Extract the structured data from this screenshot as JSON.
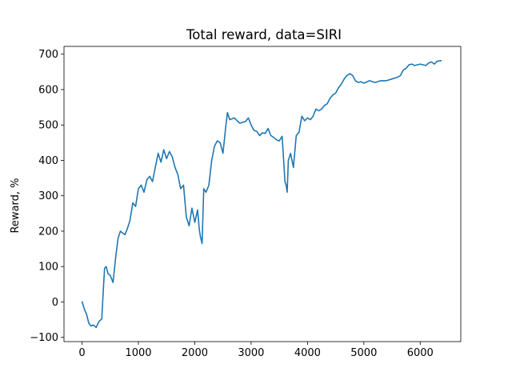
{
  "chart_data": {
    "type": "line",
    "title": "Total reward, data=SIRI",
    "xlabel": "",
    "ylabel": "Reward, %",
    "xlim": [
      -320,
      6720
    ],
    "ylim": [
      -112,
      722
    ],
    "xticks": [
      0,
      1000,
      2000,
      3000,
      4000,
      5000,
      6000
    ],
    "yticks": [
      -100,
      0,
      100,
      200,
      300,
      400,
      500,
      600,
      700
    ],
    "grid": false,
    "legend": "none",
    "series": [
      {
        "color": "#1f77b4",
        "points": [
          [
            0,
            2
          ],
          [
            40,
            -20
          ],
          [
            80,
            -35
          ],
          [
            120,
            -60
          ],
          [
            160,
            -68
          ],
          [
            200,
            -65
          ],
          [
            250,
            -72
          ],
          [
            300,
            -55
          ],
          [
            350,
            -48
          ],
          [
            380,
            40
          ],
          [
            400,
            95
          ],
          [
            430,
            100
          ],
          [
            460,
            80
          ],
          [
            500,
            75
          ],
          [
            550,
            55
          ],
          [
            600,
            130
          ],
          [
            640,
            180
          ],
          [
            680,
            200
          ],
          [
            720,
            195
          ],
          [
            760,
            190
          ],
          [
            800,
            205
          ],
          [
            850,
            230
          ],
          [
            900,
            280
          ],
          [
            950,
            270
          ],
          [
            1000,
            320
          ],
          [
            1050,
            330
          ],
          [
            1100,
            310
          ],
          [
            1150,
            345
          ],
          [
            1200,
            355
          ],
          [
            1250,
            340
          ],
          [
            1300,
            380
          ],
          [
            1350,
            420
          ],
          [
            1400,
            395
          ],
          [
            1450,
            430
          ],
          [
            1500,
            405
          ],
          [
            1550,
            425
          ],
          [
            1600,
            410
          ],
          [
            1650,
            380
          ],
          [
            1700,
            360
          ],
          [
            1750,
            320
          ],
          [
            1800,
            330
          ],
          [
            1850,
            240
          ],
          [
            1900,
            215
          ],
          [
            1950,
            265
          ],
          [
            2000,
            225
          ],
          [
            2050,
            260
          ],
          [
            2080,
            205
          ],
          [
            2100,
            185
          ],
          [
            2130,
            165
          ],
          [
            2160,
            320
          ],
          [
            2200,
            310
          ],
          [
            2250,
            330
          ],
          [
            2300,
            400
          ],
          [
            2350,
            440
          ],
          [
            2400,
            455
          ],
          [
            2450,
            450
          ],
          [
            2500,
            420
          ],
          [
            2550,
            495
          ],
          [
            2580,
            535
          ],
          [
            2620,
            515
          ],
          [
            2700,
            520
          ],
          [
            2800,
            505
          ],
          [
            2900,
            510
          ],
          [
            2950,
            520
          ],
          [
            3000,
            500
          ],
          [
            3050,
            485
          ],
          [
            3100,
            482
          ],
          [
            3150,
            470
          ],
          [
            3200,
            478
          ],
          [
            3250,
            476
          ],
          [
            3300,
            490
          ],
          [
            3350,
            470
          ],
          [
            3400,
            465
          ],
          [
            3450,
            458
          ],
          [
            3500,
            455
          ],
          [
            3550,
            468
          ],
          [
            3600,
            340
          ],
          [
            3620,
            330
          ],
          [
            3640,
            310
          ],
          [
            3660,
            400
          ],
          [
            3700,
            420
          ],
          [
            3750,
            380
          ],
          [
            3800,
            470
          ],
          [
            3850,
            480
          ],
          [
            3900,
            525
          ],
          [
            3950,
            512
          ],
          [
            4000,
            520
          ],
          [
            4050,
            515
          ],
          [
            4100,
            525
          ],
          [
            4150,
            545
          ],
          [
            4200,
            540
          ],
          [
            4250,
            545
          ],
          [
            4300,
            555
          ],
          [
            4350,
            560
          ],
          [
            4400,
            575
          ],
          [
            4450,
            585
          ],
          [
            4500,
            590
          ],
          [
            4550,
            605
          ],
          [
            4600,
            615
          ],
          [
            4650,
            630
          ],
          [
            4700,
            640
          ],
          [
            4750,
            645
          ],
          [
            4800,
            640
          ],
          [
            4850,
            625
          ],
          [
            4900,
            620
          ],
          [
            4950,
            622
          ],
          [
            5000,
            618
          ],
          [
            5100,
            625
          ],
          [
            5200,
            620
          ],
          [
            5300,
            625
          ],
          [
            5400,
            625
          ],
          [
            5500,
            630
          ],
          [
            5600,
            635
          ],
          [
            5650,
            640
          ],
          [
            5700,
            655
          ],
          [
            5750,
            660
          ],
          [
            5800,
            670
          ],
          [
            5850,
            672
          ],
          [
            5900,
            668
          ],
          [
            5950,
            670
          ],
          [
            6000,
            672
          ],
          [
            6100,
            668
          ],
          [
            6150,
            675
          ],
          [
            6200,
            678
          ],
          [
            6250,
            672
          ],
          [
            6300,
            680
          ],
          [
            6380,
            682
          ]
        ]
      }
    ]
  }
}
